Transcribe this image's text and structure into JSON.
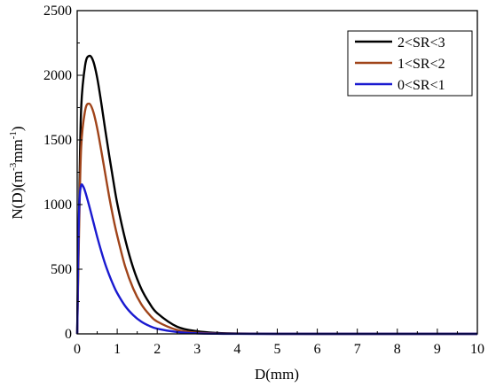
{
  "chart_data": {
    "type": "line",
    "xlabel": "D(mm)",
    "ylabel_parts": [
      "N(D)(m",
      "-3",
      "mm",
      "-1",
      ")"
    ],
    "xlim": [
      0,
      10
    ],
    "ylim": [
      0,
      2500
    ],
    "x_ticks": [
      "0",
      "1",
      "2",
      "3",
      "4",
      "5",
      "6",
      "7",
      "8",
      "9",
      "10"
    ],
    "y_ticks": [
      "0",
      "500",
      "1000",
      "1500",
      "2000",
      "2500"
    ],
    "grid": false,
    "legend_position": "top-right",
    "series": [
      {
        "name": "2<SR<3",
        "color": "#000000",
        "x": [
          0.0,
          0.05,
          0.1,
          0.2,
          0.3,
          0.4,
          0.5,
          0.6,
          0.7,
          0.8,
          0.9,
          1.0,
          1.2,
          1.4,
          1.6,
          1.8,
          2.0,
          2.5,
          3.0,
          3.5,
          4.0,
          5.0,
          6.0,
          7.0,
          8.0,
          9.0,
          10.0
        ],
        "values": [
          0,
          1000,
          1750,
          2080,
          2150,
          2110,
          1980,
          1790,
          1580,
          1380,
          1190,
          1010,
          730,
          510,
          350,
          240,
          160,
          55,
          20,
          7,
          2.5,
          0.5,
          0,
          0,
          0,
          0,
          0
        ]
      },
      {
        "name": "1<SR<2",
        "color": "#a0441a",
        "x": [
          0.0,
          0.05,
          0.1,
          0.2,
          0.3,
          0.4,
          0.5,
          0.6,
          0.7,
          0.8,
          0.9,
          1.0,
          1.2,
          1.4,
          1.6,
          1.8,
          2.0,
          2.5,
          3.0,
          3.5,
          4.0,
          5.0,
          6.0,
          7.0,
          8.0,
          9.0,
          10.0
        ],
        "values": [
          0,
          850,
          1450,
          1730,
          1780,
          1720,
          1590,
          1420,
          1240,
          1060,
          900,
          760,
          520,
          350,
          230,
          150,
          95,
          30,
          9,
          3,
          1,
          0,
          0,
          0,
          0,
          0,
          0
        ]
      },
      {
        "name": "0<SR<1",
        "color": "#1a1ad0",
        "x": [
          0.0,
          0.03,
          0.06,
          0.1,
          0.15,
          0.2,
          0.3,
          0.4,
          0.5,
          0.6,
          0.7,
          0.8,
          0.9,
          1.0,
          1.2,
          1.4,
          1.6,
          1.8,
          2.0,
          2.5,
          3.0,
          3.5,
          4.0,
          5.0,
          6.0,
          7.0,
          8.0,
          9.0,
          10.0
        ],
        "values": [
          0,
          700,
          1050,
          1150,
          1140,
          1100,
          990,
          870,
          750,
          640,
          540,
          455,
          380,
          315,
          215,
          145,
          95,
          62,
          40,
          14,
          4,
          1.2,
          0.3,
          0,
          0,
          0,
          0,
          0,
          0
        ]
      }
    ]
  }
}
